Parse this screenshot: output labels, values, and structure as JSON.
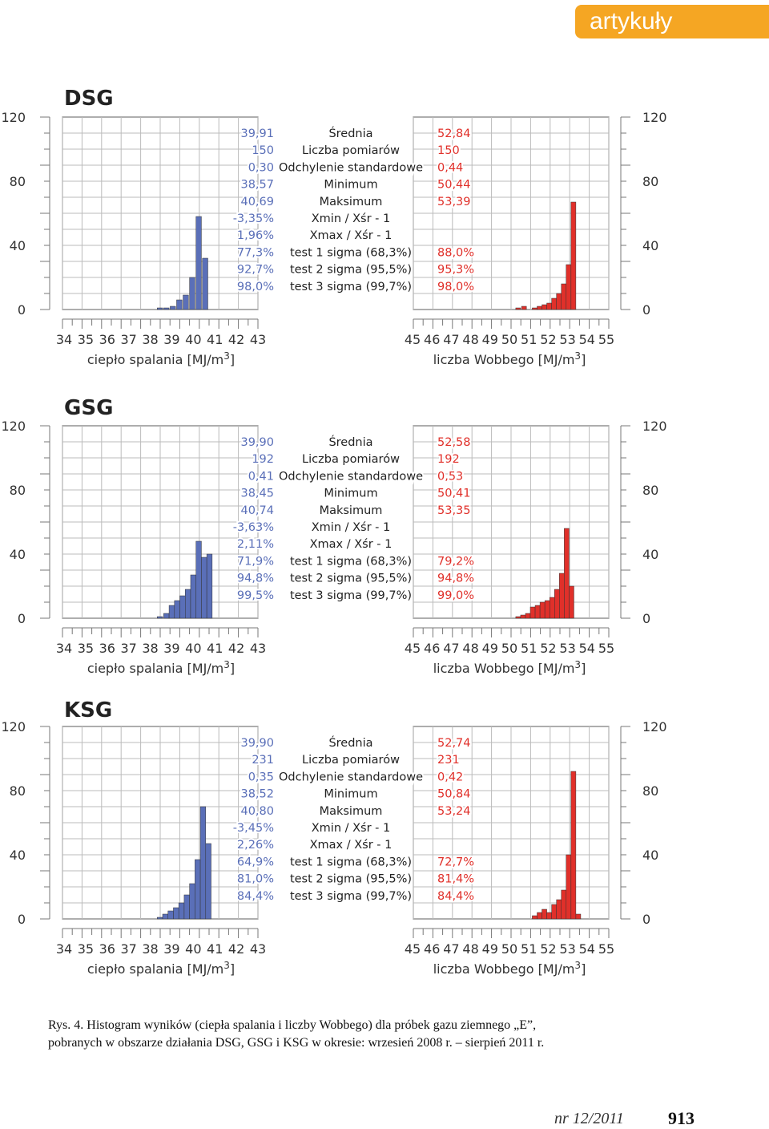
{
  "section_tab": "artykuły",
  "chart_data": [
    {
      "id": "dsg",
      "title": "DSG",
      "type": "bar",
      "left": {
        "xlabel": "ciepło spalania [MJ/m3]",
        "xticks": [
          "34",
          "35",
          "36",
          "37",
          "38",
          "39",
          "40",
          "41",
          "42",
          "43"
        ],
        "xrange": [
          34,
          43
        ],
        "ylim": [
          0,
          120
        ],
        "yticks": [
          "120",
          "80",
          "40",
          "0"
        ],
        "color": "#5a6fb8",
        "x": [
          38.45,
          38.75,
          39.05,
          39.35,
          39.65,
          39.95,
          40.25,
          40.55
        ],
        "values": [
          1,
          1,
          2,
          6,
          9,
          20,
          58,
          32
        ],
        "stats": [
          "39,91",
          "150",
          "0,30",
          "38,57",
          "40,69",
          "-3,35%",
          "1,96%",
          "77,3%",
          "92,7%",
          "98,0%"
        ]
      },
      "right": {
        "xlabel": "liczba Wobbego [MJ/m3]",
        "xticks": [
          "45",
          "46",
          "47",
          "48",
          "49",
          "50",
          "51",
          "52",
          "53",
          "54",
          "55"
        ],
        "xrange": [
          45,
          55
        ],
        "ylim": [
          0,
          120
        ],
        "yticks": [
          "120",
          "80",
          "40",
          "0"
        ],
        "color": "#e0302a",
        "x": [
          50.45,
          50.75,
          51.3,
          51.55,
          51.8,
          52.05,
          52.3,
          52.55,
          52.8,
          53.05,
          53.3
        ],
        "values": [
          1,
          2,
          1,
          2,
          3,
          4,
          7,
          10,
          16,
          28,
          67
        ],
        "stats": [
          "52,84",
          "150",
          "0,44",
          "50,44",
          "53,39",
          "",
          "",
          "88,0%",
          "95,3%",
          "98,0%"
        ]
      },
      "labels": [
        "Średnia",
        "Liczba pomiarów",
        "Odchylenie standardowe",
        "Minimum",
        "Maksimum",
        "Xmin / Xśr - 1",
        "Xmax / Xśr - 1",
        "test 1 sigma (68,3%)",
        "test 2 sigma (95,5%)",
        "test 3 sigma (99,7%)"
      ]
    },
    {
      "id": "gsg",
      "title": "GSG",
      "type": "bar",
      "left": {
        "xlabel": "ciepło spalania [MJ/m3]",
        "xticks": [
          "34",
          "35",
          "36",
          "37",
          "38",
          "39",
          "40",
          "41",
          "42",
          "43"
        ],
        "xrange": [
          34,
          43
        ],
        "ylim": [
          0,
          120
        ],
        "yticks": [
          "120",
          "80",
          "40",
          "0"
        ],
        "color": "#5a6fb8",
        "x": [
          38.45,
          38.75,
          39.0,
          39.25,
          39.5,
          39.75,
          40.0,
          40.25,
          40.5,
          40.75
        ],
        "values": [
          1,
          3,
          8,
          11,
          14,
          18,
          27,
          48,
          38,
          40
        ],
        "stats": [
          "39,90",
          "192",
          "0,41",
          "38,45",
          "40,74",
          "-3,63%",
          "2,11%",
          "71,9%",
          "94,8%",
          "99,5%"
        ]
      },
      "right": {
        "xlabel": "liczba Wobbego [MJ/m3]",
        "xticks": [
          "45",
          "46",
          "47",
          "48",
          "49",
          "50",
          "51",
          "52",
          "53",
          "54",
          "55"
        ],
        "xrange": [
          45,
          55
        ],
        "ylim": [
          0,
          120
        ],
        "yticks": [
          "120",
          "80",
          "40",
          "0"
        ],
        "color": "#e0302a",
        "x": [
          50.45,
          50.7,
          50.95,
          51.2,
          51.45,
          51.7,
          51.95,
          52.2,
          52.45,
          52.7,
          52.95,
          53.2
        ],
        "values": [
          1,
          2,
          3,
          7,
          8,
          10,
          11,
          13,
          18,
          28,
          56,
          20
        ],
        "stats": [
          "52,58",
          "192",
          "0,53",
          "50,41",
          "53,35",
          "",
          "",
          "79,2%",
          "94,8%",
          "99,0%"
        ]
      },
      "labels": [
        "Średnia",
        "Liczba pomiarów",
        "Odchylenie standardowe",
        "Minimum",
        "Maksimum",
        "Xmin / Xśr - 1",
        "Xmax / Xśr - 1",
        "test 1 sigma (68,3%)",
        "test 2 sigma (95,5%)",
        "test 3 sigma (99,7%)"
      ]
    },
    {
      "id": "ksg",
      "title": "KSG",
      "type": "bar",
      "left": {
        "xlabel": "ciepło spalania [MJ/m3]",
        "xticks": [
          "34",
          "35",
          "36",
          "37",
          "38",
          "39",
          "40",
          "41",
          "42",
          "43"
        ],
        "xrange": [
          34,
          43
        ],
        "ylim": [
          0,
          120
        ],
        "yticks": [
          "120",
          "80",
          "40",
          "0"
        ],
        "color": "#5a6fb8",
        "x": [
          38.45,
          38.7,
          38.95,
          39.2,
          39.45,
          39.7,
          39.95,
          40.2,
          40.45,
          40.7
        ],
        "values": [
          1,
          3,
          5,
          7,
          10,
          15,
          22,
          37,
          70,
          47
        ],
        "stats": [
          "39,90",
          "231",
          "0,35",
          "38,52",
          "40,80",
          "-3,45%",
          "2,26%",
          "64,9%",
          "81,0%",
          "84,4%"
        ]
      },
      "right": {
        "xlabel": "liczba Wobbego [MJ/m3]",
        "xticks": [
          "45",
          "46",
          "47",
          "48",
          "49",
          "50",
          "51",
          "52",
          "53",
          "54",
          "55"
        ],
        "xrange": [
          45,
          55
        ],
        "ylim": [
          0,
          120
        ],
        "yticks": [
          "120",
          "80",
          "40",
          "0"
        ],
        "color": "#e0302a",
        "x": [
          51.3,
          51.55,
          51.8,
          52.05,
          52.3,
          52.55,
          52.8,
          53.05,
          53.3,
          53.55
        ],
        "values": [
          2,
          4,
          6,
          4,
          9,
          12,
          18,
          40,
          92,
          3
        ],
        "stats": [
          "52,74",
          "231",
          "0,42",
          "50,84",
          "53,24",
          "",
          "",
          "72,7%",
          "81,4%",
          "84,4%"
        ]
      },
      "labels": [
        "Średnia",
        "Liczba pomiarów",
        "Odchylenie standardowe",
        "Minimum",
        "Maksimum",
        "Xmin / Xśr - 1",
        "Xmax / Xśr - 1",
        "test 1 sigma (68,3%)",
        "test 2 sigma (95,5%)",
        "test 3 sigma (99,7%)"
      ]
    }
  ],
  "caption": {
    "line1": "Rys. 4. Histogram wyników (ciepła spalania i liczby Wobbego) dla próbek gazu ziemnego „E”,",
    "line2": "pobranych w obszarze działania DSG, GSG i KSG w okresie: wrzesień 2008 r. – sierpień 2011 r."
  },
  "footer": {
    "issue": "nr 12/2011",
    "page": "913"
  }
}
